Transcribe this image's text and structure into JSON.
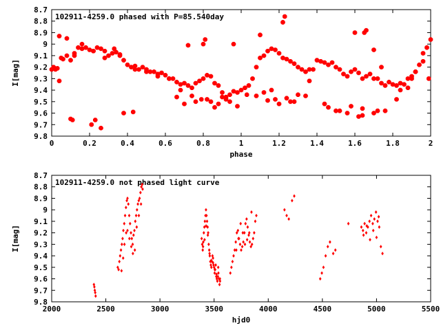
{
  "chart_data": [
    {
      "type": "scatter",
      "title": "102911-4259.0 phased with P=85.540day",
      "xlabel": "phase",
      "ylabel": "I[mag]",
      "xlim": [
        0,
        2
      ],
      "ylim": [
        9.8,
        8.7
      ],
      "xticks": [
        "0",
        "0.2",
        "0.4",
        "0.6",
        "0.8",
        "1",
        "1.2",
        "1.4",
        "1.6",
        "1.8",
        "2"
      ],
      "yticks": [
        "8.7",
        "8.8",
        "8.9",
        "9",
        "9.1",
        "9.2",
        "9.3",
        "9.4",
        "9.5",
        "9.6",
        "9.7",
        "9.8"
      ],
      "grid": false,
      "color": "#ff0000",
      "marker": "star",
      "series": [
        {
          "x": [
            0.0,
            0.01,
            0.02,
            0.03,
            0.04,
            0.05,
            0.06,
            0.08,
            0.1,
            0.12,
            0.14,
            0.16,
            0.18,
            0.2,
            0.22,
            0.24,
            0.26,
            0.28,
            0.3,
            0.32,
            0.34,
            0.36,
            0.38,
            0.4,
            0.42,
            0.44,
            0.46,
            0.48,
            0.5,
            0.52,
            0.54,
            0.56,
            0.58,
            0.6,
            0.62,
            0.64,
            0.66,
            0.68,
            0.7,
            0.72,
            0.74,
            0.76,
            0.78,
            0.8,
            0.82,
            0.84,
            0.86,
            0.88,
            0.9,
            0.92,
            0.94,
            0.96,
            0.98,
            1.0,
            1.02,
            1.04,
            1.06,
            1.08,
            1.1,
            1.12,
            1.14,
            1.16,
            1.18,
            1.2,
            1.22,
            1.24,
            1.26,
            1.28,
            1.3,
            1.32,
            1.34,
            1.36,
            1.38,
            1.4,
            1.42,
            1.44,
            1.46,
            1.48,
            1.5,
            1.52,
            1.54,
            1.56,
            1.58,
            1.6,
            1.62,
            1.64,
            1.66,
            1.68,
            1.7,
            1.72,
            1.74,
            1.76,
            1.78,
            1.8,
            1.82,
            1.84,
            1.86,
            1.88,
            1.9,
            1.92,
            1.94,
            1.96,
            1.98,
            2.0,
            0.04,
            0.08,
            0.12,
            0.16,
            0.22,
            0.28,
            0.33,
            0.36,
            0.44,
            0.5,
            0.56,
            0.62,
            0.68,
            0.74,
            0.79,
            0.84,
            0.88,
            0.92,
            0.98,
            1.03,
            1.08,
            1.14,
            1.2,
            1.24,
            1.28,
            1.36,
            1.44,
            1.52,
            1.58,
            1.64,
            1.7,
            1.76,
            1.84,
            1.9,
            1.96,
            0.1,
            0.11,
            0.21,
            0.23,
            0.26,
            0.38,
            0.43,
            0.72,
            0.8,
            0.81,
            0.96,
            1.1,
            1.22,
            1.23,
            1.6,
            1.65,
            1.66,
            1.7,
            1.74,
            1.92,
            1.99,
            0.66,
            0.7,
            0.76,
            0.82,
            0.86,
            0.9,
            0.94,
            1.12,
            1.16,
            1.18,
            1.26,
            1.3,
            1.34,
            1.46,
            1.5,
            1.56,
            1.62,
            1.64,
            1.72,
            1.82,
            1.88
          ],
          "y": [
            9.22,
            9.2,
            9.22,
            9.21,
            9.32,
            9.12,
            9.13,
            9.1,
            9.14,
            9.08,
            9.03,
            9.04,
            9.03,
            9.05,
            9.06,
            9.03,
            9.04,
            9.06,
            9.1,
            9.08,
            9.07,
            9.09,
            9.14,
            9.18,
            9.2,
            9.19,
            9.22,
            9.2,
            9.22,
            9.24,
            9.24,
            9.26,
            9.25,
            9.27,
            9.3,
            9.3,
            9.33,
            9.35,
            9.34,
            9.36,
            9.38,
            9.34,
            9.32,
            9.3,
            9.27,
            9.28,
            9.34,
            9.36,
            9.42,
            9.46,
            9.44,
            9.41,
            9.42,
            9.4,
            9.38,
            9.36,
            9.3,
            9.2,
            9.12,
            9.1,
            9.06,
            9.04,
            9.05,
            9.08,
            9.12,
            9.13,
            9.15,
            9.17,
            9.2,
            9.22,
            9.24,
            9.22,
            9.22,
            9.14,
            9.15,
            9.16,
            9.18,
            9.16,
            9.2,
            9.22,
            9.26,
            9.28,
            9.24,
            9.22,
            9.25,
            9.3,
            9.28,
            9.26,
            9.3,
            9.3,
            9.34,
            9.36,
            9.33,
            9.35,
            9.36,
            9.34,
            9.35,
            9.3,
            9.28,
            9.24,
            9.18,
            9.08,
            9.03,
            8.96,
            8.93,
            8.95,
            9.1,
            9.0,
            9.06,
            9.12,
            9.04,
            9.1,
            9.22,
            9.24,
            9.28,
            9.3,
            9.4,
            9.45,
            9.48,
            9.5,
            9.52,
            9.48,
            9.54,
            9.44,
            9.45,
            9.49,
            9.52,
            9.47,
            9.5,
            9.32,
            9.52,
            9.58,
            9.54,
            9.56,
            9.6,
            9.58,
            9.4,
            9.3,
            9.15,
            9.65,
            9.66,
            9.7,
            9.66,
            9.73,
            9.6,
            9.59,
            9.01,
            9.0,
            8.96,
            9.0,
            8.92,
            8.81,
            8.76,
            8.9,
            8.9,
            8.88,
            9.05,
            9.2,
            9.24,
            9.3,
            9.46,
            9.52,
            9.5,
            9.48,
            9.55,
            9.46,
            9.5,
            9.42,
            9.4,
            9.48,
            9.5,
            9.44,
            9.45,
            9.55,
            9.58,
            9.6,
            9.63,
            9.62,
            9.58,
            9.48,
            9.38
          ]
        }
      ]
    },
    {
      "type": "scatter",
      "title": "102911-4259.0 not phased light curve",
      "xlabel": "hjd0",
      "ylabel": "I[mag]",
      "xlim": [
        2000,
        5500
      ],
      "ylim": [
        9.8,
        8.7
      ],
      "xticks": [
        "2000",
        "2500",
        "3000",
        "3500",
        "4000",
        "4500",
        "5000",
        "5500"
      ],
      "yticks": [
        "8.7",
        "8.8",
        "8.9",
        "9",
        "9.1",
        "9.2",
        "9.3",
        "9.4",
        "9.5",
        "9.6",
        "9.7",
        "9.8"
      ],
      "grid": false,
      "color": "#ff0000",
      "marker": "diamond",
      "series": [
        {
          "x": [
            2390,
            2394,
            2398,
            2402,
            2406,
            2610,
            2618,
            2625,
            2632,
            2640,
            2648,
            2655,
            2662,
            2670,
            2678,
            2686,
            2694,
            2700,
            2708,
            2716,
            2724,
            2732,
            2740,
            2748,
            2756,
            2764,
            2772,
            2780,
            2788,
            2796,
            2804,
            2812,
            2820,
            2828,
            2836,
            2645,
            2660,
            2672,
            2688,
            2700,
            2718,
            2735,
            2750,
            2768,
            2785,
            2805,
            2825,
            2840,
            3385,
            3390,
            3395,
            3400,
            3405,
            3410,
            3415,
            3420,
            3425,
            3430,
            3435,
            3440,
            3445,
            3450,
            3455,
            3460,
            3465,
            3470,
            3475,
            3480,
            3485,
            3490,
            3495,
            3500,
            3505,
            3510,
            3515,
            3520,
            3525,
            3530,
            3535,
            3540,
            3545,
            3550,
            3555,
            3398,
            3412,
            3426,
            3442,
            3458,
            3474,
            3490,
            3506,
            3522,
            3538,
            3554,
            3650,
            3660,
            3670,
            3680,
            3690,
            3700,
            3710,
            3720,
            3730,
            3740,
            3750,
            3760,
            3770,
            3780,
            3790,
            3800,
            3810,
            3820,
            3830,
            3840,
            3850,
            3860,
            3870,
            3880,
            3890,
            3705,
            3725,
            3745,
            3765,
            3785,
            3805,
            3825,
            3845,
            4150,
            4170,
            4190,
            4220,
            4240,
            4480,
            4495,
            4510,
            4530,
            4550,
            4570,
            4600,
            4620,
            4740,
            4860,
            4875,
            4890,
            4905,
            4920,
            4935,
            4950,
            4965,
            4980,
            4995,
            5010,
            5025,
            5040,
            5055,
            4880,
            4910,
            4940,
            4970,
            5000,
            5020
          ],
          "y": [
            9.65,
            9.67,
            9.7,
            9.72,
            9.75,
            9.5,
            9.52,
            9.45,
            9.4,
            9.35,
            9.3,
            9.25,
            9.18,
            9.12,
            9.05,
            8.98,
            8.92,
            8.9,
            8.95,
            9.05,
            9.12,
            9.2,
            9.25,
            9.3,
            9.22,
            9.18,
            9.1,
            9.05,
            9.0,
            8.95,
            8.92,
            8.9,
            8.85,
            8.8,
            8.78,
            9.53,
            9.42,
            9.3,
            9.2,
            9.18,
            9.25,
            9.32,
            9.38,
            9.35,
            9.15,
            9.05,
            8.95,
            8.82,
            9.25,
            9.3,
            9.35,
            9.28,
            9.2,
            9.15,
            9.1,
            9.05,
            9.0,
            9.05,
            9.1,
            9.15,
            9.2,
            9.3,
            9.35,
            9.4,
            9.45,
            9.48,
            9.5,
            9.45,
            9.4,
            9.42,
            9.48,
            9.5,
            9.55,
            9.52,
            9.48,
            9.58,
            9.6,
            9.62,
            9.58,
            9.55,
            9.6,
            9.65,
            9.62,
            9.32,
            9.26,
            9.14,
            9.22,
            9.38,
            9.44,
            9.46,
            9.52,
            9.56,
            9.5,
            9.6,
            9.55,
            9.5,
            9.45,
            9.4,
            9.35,
            9.28,
            9.2,
            9.18,
            9.25,
            9.3,
            9.35,
            9.32,
            9.28,
            9.2,
            9.12,
            9.08,
            9.15,
            9.22,
            9.28,
            9.32,
            9.3,
            9.25,
            9.2,
            9.1,
            9.05,
            9.35,
            9.25,
            9.12,
            9.2,
            9.3,
            9.26,
            9.2,
            9.02,
            9.0,
            9.05,
            9.08,
            8.92,
            8.88,
            9.6,
            9.55,
            9.5,
            9.4,
            9.32,
            9.28,
            9.38,
            9.35,
            9.12,
            9.15,
            9.18,
            9.12,
            9.2,
            9.15,
            9.1,
            9.05,
            9.12,
            9.08,
            9.02,
            9.1,
            9.15,
            9.32,
            9.38,
            9.22,
            9.14,
            9.26,
            9.18,
            9.24,
            9.06
          ]
        }
      ]
    }
  ]
}
